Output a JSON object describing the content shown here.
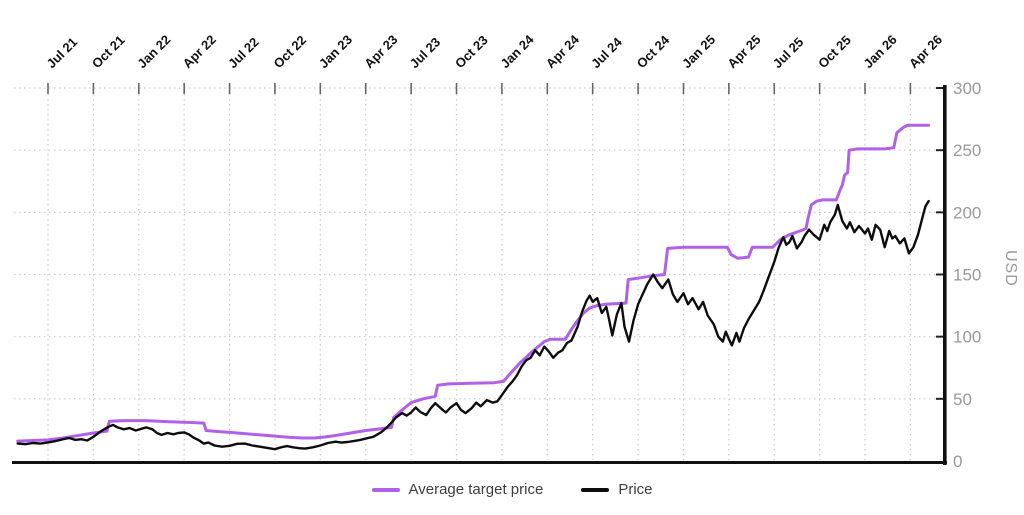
{
  "chart_data": {
    "type": "line",
    "title": "",
    "xlabel": "",
    "ylabel": "USD",
    "ylim": [
      0,
      300
    ],
    "ytick_values": [
      0,
      50,
      100,
      150,
      200,
      250,
      300
    ],
    "x_tick_labels": [
      "Jul 21",
      "Oct 21",
      "Jan 22",
      "Apr 22",
      "Jul 22",
      "Oct 22",
      "Jan 23",
      "Apr 23",
      "Jul 23",
      "Oct 23",
      "Jan 24",
      "Apr 24",
      "Jul 24",
      "Oct 24",
      "Jan 25",
      "Apr 25",
      "Jul 25",
      "Oct 25",
      "Jan 26",
      "Apr 26"
    ],
    "x_unit": "months_after_first_tick",
    "grid": "dotted",
    "legend_position": "bottom-center",
    "axis_color": "#111111",
    "grid_color": "#c9c9c9",
    "tick_label_color": "#999999",
    "series": [
      {
        "name": "Average target price",
        "color": "#b161e8",
        "points": [
          [
            -2,
            16
          ],
          [
            -1,
            16.5
          ],
          [
            0,
            17
          ],
          [
            1,
            18.5
          ],
          [
            2,
            20.5
          ],
          [
            3,
            22.5
          ],
          [
            3.9,
            24
          ],
          [
            4.05,
            32
          ],
          [
            5,
            32.5
          ],
          [
            6.5,
            32.5
          ],
          [
            8,
            31.5
          ],
          [
            9.5,
            31
          ],
          [
            10.3,
            30.5
          ],
          [
            10.45,
            24.5
          ],
          [
            11,
            24
          ],
          [
            12,
            23
          ],
          [
            13,
            22
          ],
          [
            14,
            21
          ],
          [
            15,
            20
          ],
          [
            16,
            19
          ],
          [
            16.8,
            18.5
          ],
          [
            17.6,
            18.5
          ],
          [
            18.3,
            19.3
          ],
          [
            19,
            20.5
          ],
          [
            20,
            22.5
          ],
          [
            21,
            24.5
          ],
          [
            22,
            26
          ],
          [
            22.7,
            27
          ],
          [
            22.85,
            35
          ],
          [
            23.3,
            40
          ],
          [
            24,
            47
          ],
          [
            24.8,
            50
          ],
          [
            25.6,
            52
          ],
          [
            25.75,
            61
          ],
          [
            26.5,
            62
          ],
          [
            28,
            62.5
          ],
          [
            29.5,
            63
          ],
          [
            30.1,
            64
          ],
          [
            30.6,
            71
          ],
          [
            31.2,
            79
          ],
          [
            32,
            88
          ],
          [
            32.8,
            96
          ],
          [
            33.2,
            98
          ],
          [
            34.2,
            98
          ],
          [
            34.6,
            106
          ],
          [
            35,
            113
          ],
          [
            35.4,
            119
          ],
          [
            35.8,
            123
          ],
          [
            36.3,
            125
          ],
          [
            36.8,
            126
          ],
          [
            38.2,
            127
          ],
          [
            38.35,
            146
          ],
          [
            39,
            147
          ],
          [
            40,
            149
          ],
          [
            40.75,
            150
          ],
          [
            40.95,
            171
          ],
          [
            42,
            172
          ],
          [
            44.9,
            172
          ],
          [
            45.15,
            166
          ],
          [
            45.6,
            163
          ],
          [
            46.3,
            164
          ],
          [
            46.55,
            172
          ],
          [
            47.9,
            172
          ],
          [
            48.4,
            178
          ],
          [
            49,
            182
          ],
          [
            49.7,
            185
          ],
          [
            50.1,
            187
          ],
          [
            50.25,
            196
          ],
          [
            50.45,
            206
          ],
          [
            50.8,
            209
          ],
          [
            51.2,
            210
          ],
          [
            52.1,
            210
          ],
          [
            52.35,
            218
          ],
          [
            52.5,
            222
          ],
          [
            52.65,
            230
          ],
          [
            52.85,
            232
          ],
          [
            52.95,
            250
          ],
          [
            53.5,
            251
          ],
          [
            55.3,
            251
          ],
          [
            55.9,
            252
          ],
          [
            56.1,
            264
          ],
          [
            56.5,
            268
          ],
          [
            56.8,
            270
          ],
          [
            58.2,
            270
          ]
        ]
      },
      {
        "name": "Price",
        "color": "#0d0d0d",
        "points": [
          [
            -2,
            14
          ],
          [
            -1.5,
            13.5
          ],
          [
            -1,
            14.5
          ],
          [
            -0.5,
            14
          ],
          [
            0,
            15
          ],
          [
            0.5,
            16
          ],
          [
            1,
            17.5
          ],
          [
            1.4,
            18.5
          ],
          [
            1.8,
            17
          ],
          [
            2.2,
            17.5
          ],
          [
            2.6,
            16.5
          ],
          [
            3,
            19.5
          ],
          [
            3.5,
            24
          ],
          [
            4,
            27.5
          ],
          [
            4.3,
            29
          ],
          [
            4.6,
            27
          ],
          [
            5,
            25.5
          ],
          [
            5.4,
            26.5
          ],
          [
            5.8,
            24.5
          ],
          [
            6.2,
            26
          ],
          [
            6.5,
            27
          ],
          [
            6.9,
            25.5
          ],
          [
            7.2,
            22.5
          ],
          [
            7.5,
            21
          ],
          [
            7.9,
            22.5
          ],
          [
            8.3,
            21.5
          ],
          [
            8.6,
            22.5
          ],
          [
            9,
            23
          ],
          [
            9.3,
            21.5
          ],
          [
            9.6,
            19
          ],
          [
            10,
            16.5
          ],
          [
            10.3,
            14
          ],
          [
            10.6,
            14.8
          ],
          [
            11,
            12.5
          ],
          [
            11.5,
            11.5
          ],
          [
            12,
            12.2
          ],
          [
            12.5,
            13.8
          ],
          [
            13,
            14
          ],
          [
            13.5,
            12.5
          ],
          [
            14,
            11.5
          ],
          [
            14.5,
            10.5
          ],
          [
            15,
            9.5
          ],
          [
            15.4,
            11
          ],
          [
            15.8,
            12
          ],
          [
            16.2,
            11
          ],
          [
            16.6,
            10.3
          ],
          [
            17,
            10
          ],
          [
            17.5,
            11
          ],
          [
            18,
            12.5
          ],
          [
            18.5,
            14.5
          ],
          [
            19,
            15.5
          ],
          [
            19.4,
            14.8
          ],
          [
            19.8,
            15.3
          ],
          [
            20.2,
            16
          ],
          [
            20.6,
            16.8
          ],
          [
            21,
            18
          ],
          [
            21.5,
            19.5
          ],
          [
            22,
            23
          ],
          [
            22.4,
            27
          ],
          [
            22.7,
            31
          ],
          [
            23,
            35
          ],
          [
            23.4,
            38.5
          ],
          [
            23.7,
            36.5
          ],
          [
            24,
            39
          ],
          [
            24.3,
            43
          ],
          [
            24.6,
            39.5
          ],
          [
            25,
            37
          ],
          [
            25.3,
            42.5
          ],
          [
            25.6,
            46.5
          ],
          [
            26,
            42
          ],
          [
            26.3,
            39
          ],
          [
            26.6,
            43
          ],
          [
            27,
            46.5
          ],
          [
            27.3,
            41
          ],
          [
            27.6,
            38.5
          ],
          [
            28,
            42.5
          ],
          [
            28.3,
            47
          ],
          [
            28.6,
            44
          ],
          [
            29,
            49
          ],
          [
            29.4,
            47
          ],
          [
            29.7,
            48
          ],
          [
            30,
            53
          ],
          [
            30.4,
            60
          ],
          [
            30.7,
            64
          ],
          [
            31,
            69
          ],
          [
            31.3,
            76
          ],
          [
            31.6,
            81
          ],
          [
            31.9,
            83
          ],
          [
            32.2,
            89
          ],
          [
            32.5,
            85
          ],
          [
            32.8,
            92
          ],
          [
            33.1,
            88
          ],
          [
            33.4,
            83
          ],
          [
            33.7,
            87
          ],
          [
            34,
            89
          ],
          [
            34.3,
            95
          ],
          [
            34.6,
            97
          ],
          [
            35,
            108
          ],
          [
            35.3,
            120
          ],
          [
            35.6,
            129
          ],
          [
            35.8,
            133
          ],
          [
            36,
            128
          ],
          [
            36.3,
            131
          ],
          [
            36.6,
            119
          ],
          [
            36.9,
            124
          ],
          [
            37.1,
            113
          ],
          [
            37.3,
            101
          ],
          [
            37.6,
            118
          ],
          [
            37.9,
            127
          ],
          [
            38.1,
            108
          ],
          [
            38.4,
            96
          ],
          [
            38.7,
            113
          ],
          [
            39,
            126
          ],
          [
            39.3,
            134
          ],
          [
            39.6,
            142
          ],
          [
            40,
            150
          ],
          [
            40.3,
            144
          ],
          [
            40.6,
            139
          ],
          [
            41,
            146
          ],
          [
            41.3,
            134
          ],
          [
            41.6,
            128
          ],
          [
            42,
            135
          ],
          [
            42.3,
            126
          ],
          [
            42.6,
            131
          ],
          [
            43,
            122
          ],
          [
            43.3,
            128
          ],
          [
            43.6,
            117
          ],
          [
            44,
            110
          ],
          [
            44.3,
            100
          ],
          [
            44.6,
            96
          ],
          [
            44.8,
            104
          ],
          [
            45,
            98
          ],
          [
            45.2,
            93
          ],
          [
            45.5,
            103
          ],
          [
            45.7,
            96
          ],
          [
            46,
            107
          ],
          [
            46.3,
            114
          ],
          [
            46.6,
            120
          ],
          [
            47,
            128
          ],
          [
            47.3,
            137
          ],
          [
            47.6,
            147
          ],
          [
            48,
            160
          ],
          [
            48.3,
            172
          ],
          [
            48.6,
            180
          ],
          [
            48.8,
            174
          ],
          [
            49,
            176
          ],
          [
            49.2,
            181
          ],
          [
            49.5,
            171
          ],
          [
            49.8,
            176
          ],
          [
            50,
            181
          ],
          [
            50.3,
            186
          ],
          [
            50.6,
            182
          ],
          [
            51,
            178
          ],
          [
            51.3,
            190
          ],
          [
            51.5,
            185
          ],
          [
            51.7,
            192
          ],
          [
            52,
            198
          ],
          [
            52.2,
            206
          ],
          [
            52.5,
            193
          ],
          [
            52.8,
            187
          ],
          [
            53,
            192
          ],
          [
            53.3,
            184
          ],
          [
            53.6,
            189
          ],
          [
            54,
            183
          ],
          [
            54.2,
            187
          ],
          [
            54.45,
            178
          ],
          [
            54.7,
            190
          ],
          [
            55,
            186
          ],
          [
            55.3,
            172
          ],
          [
            55.6,
            185
          ],
          [
            55.8,
            179
          ],
          [
            56,
            181
          ],
          [
            56.3,
            175
          ],
          [
            56.6,
            179
          ],
          [
            56.9,
            167
          ],
          [
            57.2,
            172
          ],
          [
            57.5,
            182
          ],
          [
            57.8,
            196
          ],
          [
            58,
            205
          ],
          [
            58.2,
            209
          ]
        ]
      }
    ]
  },
  "legend": {
    "items": [
      {
        "label": "Average target price"
      },
      {
        "label": "Price"
      }
    ]
  }
}
